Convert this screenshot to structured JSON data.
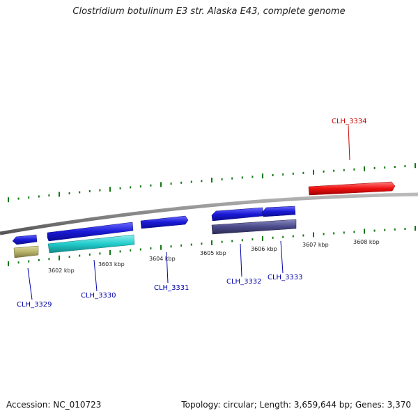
{
  "title": "Clostridium botulinum E3 str. Alaska E43, complete genome",
  "footer": {
    "accession": "Accession: NC_010723",
    "topology": "Topology: circular; Length: 3,659,644 bp; Genes: 3,370"
  },
  "kbp_labels": [
    "3602 kbp",
    "3603 kbp",
    "3604 kbp",
    "3605 kbp",
    "3606 kbp",
    "3607 kbp",
    "3608 kbp"
  ],
  "genes": [
    {
      "id": "CLH_3329",
      "strand": "reverse",
      "color": "#1a1ad6"
    },
    {
      "id": "CLH_3330",
      "strand": "forward",
      "color": "#1a1ad6"
    },
    {
      "id": "CLH_3331",
      "strand": "forward",
      "color": "#1a1ad6"
    },
    {
      "id": "CLH_3332",
      "strand": "reverse",
      "color": "#1a1ad6"
    },
    {
      "id": "CLH_3333",
      "strand": "reverse",
      "color": "#1a1ad6"
    },
    {
      "id": "CLH_3334",
      "strand": "forward",
      "color": "#ee1111"
    }
  ],
  "features": [
    {
      "name": "CLH_3329 feature",
      "color": "#b8b46a"
    },
    {
      "name": "CLH_3330 feature",
      "color": "#22cccc"
    },
    {
      "name": "CLH_3332 feature",
      "color": "#4a4a8a"
    }
  ],
  "colors": {
    "backbone": "#888888",
    "tick": "#117711",
    "label_blue": "#0000aa",
    "label_red": "#cc0000"
  }
}
